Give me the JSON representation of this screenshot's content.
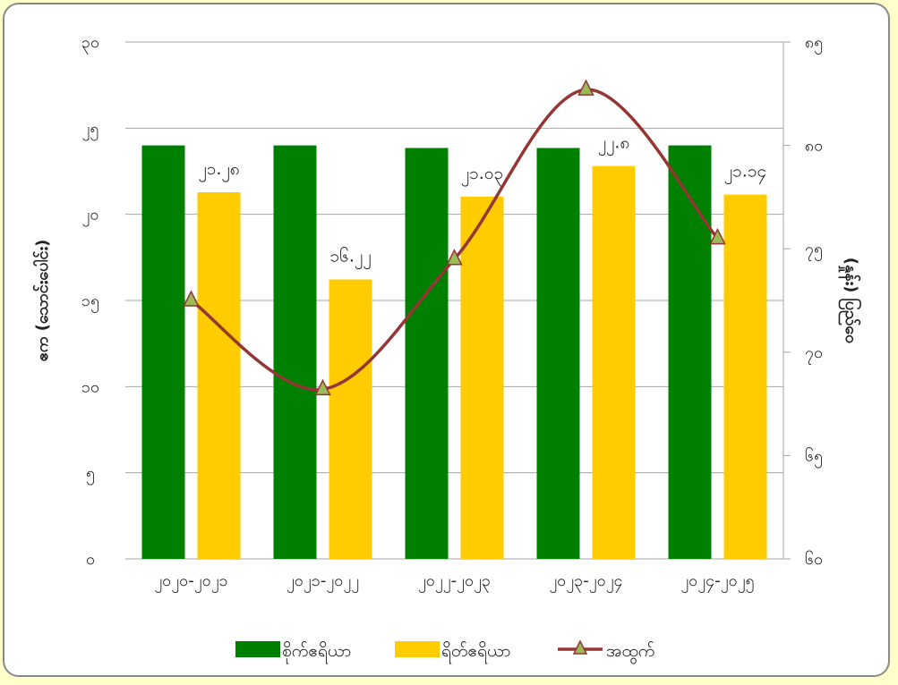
{
  "chart_data": {
    "type": "bar",
    "categories": [
      "၂၀၂၀-၂၀၂၁",
      "၂၀၂၁-၂၀၂၂",
      "၂၀၂၂-၂၀၂၃",
      "၂၀၂၃-၂၀၂၄",
      "၂၀၂၄-၂၀၂၅"
    ],
    "y_left": {
      "label": "ဧက (သောင်းပေါင်း)",
      "ylim": [
        0,
        30
      ],
      "ticks": [
        0,
        5,
        10,
        15,
        20,
        25,
        30
      ],
      "tick_labels": [
        "၀",
        "၅",
        "၁၀",
        "၁၅",
        "၂၀",
        "၂၅",
        "၃၀"
      ]
    },
    "y_right": {
      "label": "(နှုန်း) ပြည်ဝေ",
      "ylim": [
        60,
        85
      ],
      "ticks": [
        60,
        65,
        70,
        75,
        80,
        85
      ],
      "tick_labels": [
        "၆၀",
        "၆၅",
        "၇၀",
        "၇၅",
        "၈၀",
        "၈၅"
      ]
    },
    "series": [
      {
        "name": "စိုက်ဧရိယာ",
        "kind": "bar",
        "axis": "left",
        "color": "#008000",
        "values": [
          24.0,
          24.0,
          23.85,
          23.85,
          24.0
        ]
      },
      {
        "name": "ရိတ်ဧရိယာ",
        "kind": "bar",
        "axis": "left",
        "color": "#FFCC00",
        "values": [
          21.28,
          16.22,
          21.03,
          22.8,
          21.14
        ],
        "data_labels": [
          "၂၁.၂၈",
          "၁၆.၂၂",
          "၂၁.၀၃",
          "၂၂.၈",
          "၂၁.၁၄"
        ],
        "labeled_indices": [
          0,
          1,
          2,
          3,
          4
        ]
      },
      {
        "name": "အထွက်",
        "kind": "line",
        "axis": "right",
        "color": "#943634",
        "marker_color": "#9BBB59",
        "values": [
          72.5,
          68.2,
          74.5,
          82.7,
          75.5
        ]
      }
    ],
    "grid": true,
    "legend_position": "bottom"
  }
}
